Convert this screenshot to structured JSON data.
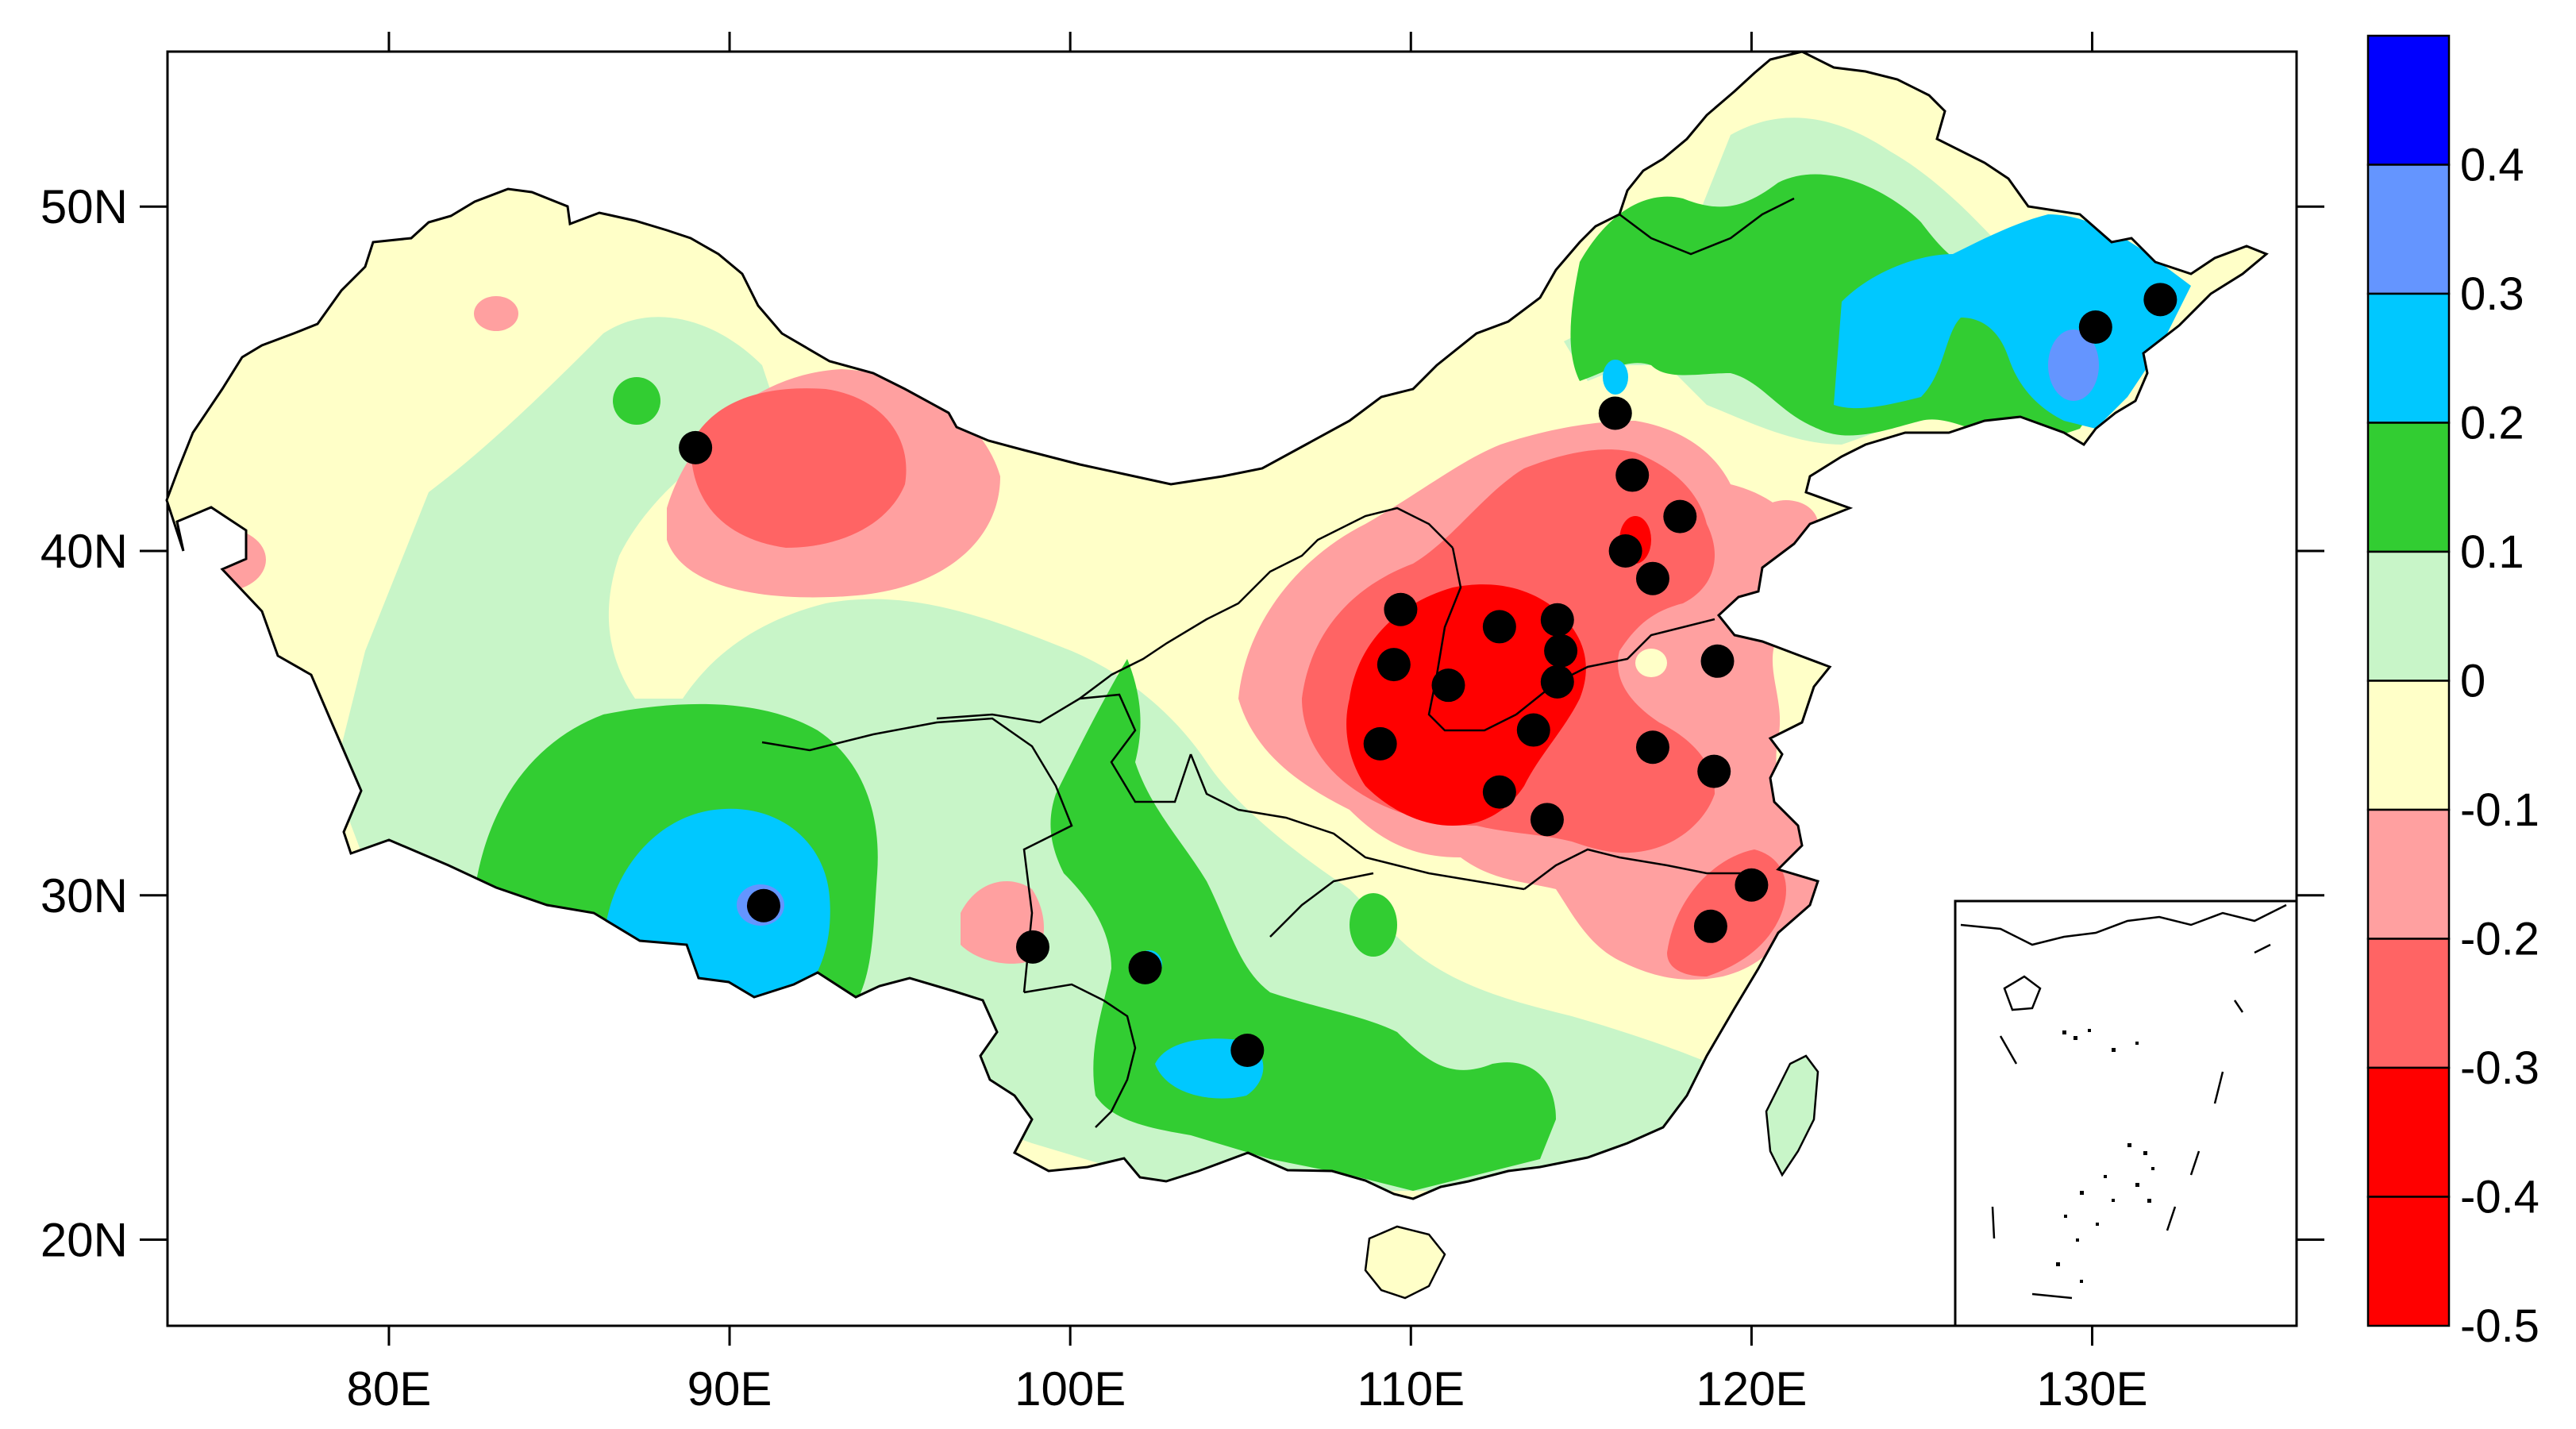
{
  "map": {
    "lon_labels": [
      "80E",
      "90E",
      "100E",
      "110E",
      "120E",
      "130E"
    ],
    "lat_labels": [
      "50N",
      "40N",
      "30N",
      "20N"
    ],
    "lon_ticks": [
      80,
      90,
      100,
      110,
      120,
      130
    ],
    "lat_ticks": [
      50,
      40,
      30,
      20
    ],
    "lon_range": [
      73.5,
      136
    ],
    "lat_range": [
      17.5,
      54.5
    ],
    "stations_marked": [
      {
        "lon": 89.0,
        "lat": 43.0
      },
      {
        "lon": 91.0,
        "lat": 29.7
      },
      {
        "lon": 98.9,
        "lat": 28.5
      },
      {
        "lon": 102.2,
        "lat": 27.9
      },
      {
        "lon": 105.2,
        "lat": 25.5
      },
      {
        "lon": 109.7,
        "lat": 38.3
      },
      {
        "lon": 109.5,
        "lat": 36.7
      },
      {
        "lon": 109.1,
        "lat": 34.4
      },
      {
        "lon": 111.1,
        "lat": 36.1
      },
      {
        "lon": 112.6,
        "lat": 37.8
      },
      {
        "lon": 114.3,
        "lat": 38.0
      },
      {
        "lon": 114.4,
        "lat": 37.1
      },
      {
        "lon": 114.3,
        "lat": 36.2
      },
      {
        "lon": 113.6,
        "lat": 34.8
      },
      {
        "lon": 112.6,
        "lat": 33.0
      },
      {
        "lon": 114.0,
        "lat": 32.2
      },
      {
        "lon": 116.0,
        "lat": 44.0
      },
      {
        "lon": 116.5,
        "lat": 42.2
      },
      {
        "lon": 117.9,
        "lat": 41.0
      },
      {
        "lon": 116.3,
        "lat": 40.0
      },
      {
        "lon": 117.1,
        "lat": 39.2
      },
      {
        "lon": 119.0,
        "lat": 36.8
      },
      {
        "lon": 117.1,
        "lat": 34.3
      },
      {
        "lon": 118.9,
        "lat": 33.6
      },
      {
        "lon": 120.0,
        "lat": 30.3
      },
      {
        "lon": 118.8,
        "lat": 29.1
      },
      {
        "lon": 130.1,
        "lat": 46.5
      },
      {
        "lon": 132.0,
        "lat": 47.3
      }
    ]
  },
  "colorbar": {
    "labels": [
      "0.4",
      "0.3",
      "0.2",
      "0.1",
      "0",
      "-0.1",
      "-0.2",
      "-0.3",
      "-0.4",
      "-0.5"
    ],
    "levels": [
      0.5,
      0.4,
      0.3,
      0.2,
      0.1,
      0,
      -0.1,
      -0.2,
      -0.3,
      -0.4,
      -0.5
    ],
    "colors": [
      "#0000ff",
      "#6495ff",
      "#00c8ff",
      "#32cd32",
      "#c8f5c8",
      "#ffffc8",
      "#ffa0a0",
      "#ff6464",
      "#ff0000",
      "#ff0000"
    ]
  },
  "colors": {
    "ocean": "#ffffff",
    "yellow": "#ffffc8",
    "lightgreen": "#c8f5c8",
    "green": "#32cd32",
    "cyan": "#00c8ff",
    "lightblue": "#6495ff",
    "pink": "#ffa0a0",
    "salmon": "#ff6464",
    "red": "#ff0000",
    "station": "#000000"
  }
}
